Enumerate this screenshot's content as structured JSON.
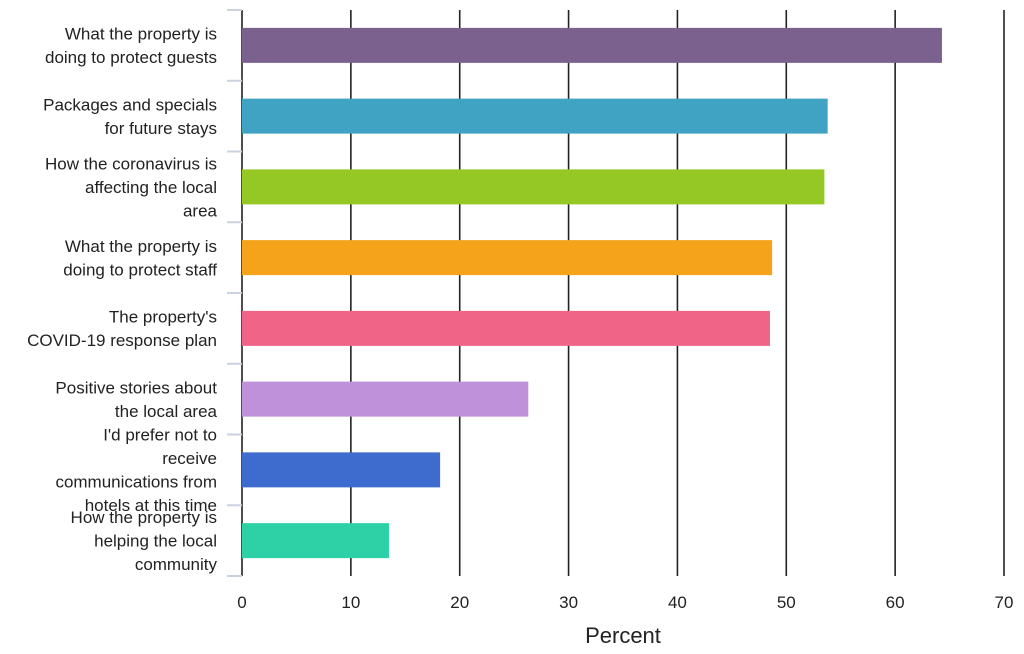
{
  "chart_data": {
    "type": "bar",
    "orientation": "horizontal",
    "categories": [
      [
        "What the property is",
        "doing to protect guests"
      ],
      [
        "Packages and specials",
        "for future stays"
      ],
      [
        "How the coronavirus is",
        "affecting the local",
        "area"
      ],
      [
        "What the property is",
        "doing to protect staff"
      ],
      [
        "The property's",
        "COVID-19 response plan"
      ],
      [
        "Positive stories about",
        "the local area"
      ],
      [
        "I'd prefer not to",
        "receive",
        "communications from",
        "hotels at this time"
      ],
      [
        "How the property is",
        "helping the local",
        "community"
      ]
    ],
    "values": [
      64.3,
      53.8,
      53.5,
      48.7,
      48.5,
      26.3,
      18.2,
      13.5
    ],
    "colors": [
      "#7b628e",
      "#40a3c3",
      "#95c825",
      "#f5a31a",
      "#f06487",
      "#bf91db",
      "#3e6cce",
      "#2ed0a6"
    ],
    "xlabel": "Percent",
    "ylabel": "",
    "xlim": [
      0,
      70
    ],
    "xticks": [
      0,
      10,
      20,
      30,
      40,
      50,
      60,
      70
    ],
    "grid": "vertical",
    "legend": "none"
  }
}
